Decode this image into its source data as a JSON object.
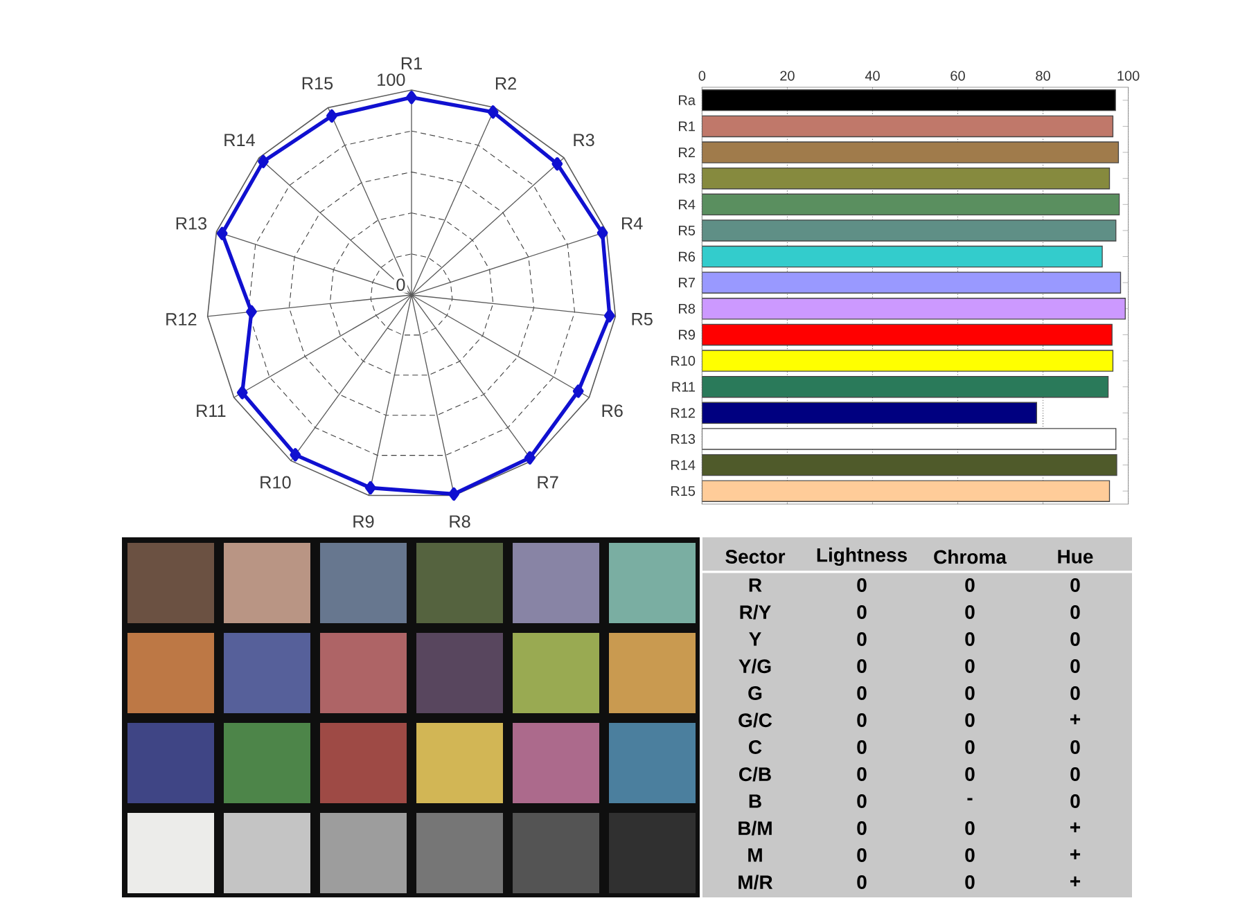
{
  "chart_data": [
    {
      "type": "radar",
      "categories": [
        "R1",
        "R2",
        "R3",
        "R4",
        "R5",
        "R6",
        "R7",
        "R8",
        "R9",
        "R10",
        "R11",
        "R12",
        "R13",
        "R14",
        "R15"
      ],
      "series": [
        {
          "color": "#1010d0",
          "values": [
            96.4,
            97.7,
            95.6,
            97.9,
            97.1,
            93.9,
            98.2,
            99.3,
            96.2,
            96.4,
            95.3,
            78.5,
            97.1,
            97.3,
            95.6
          ]
        }
      ],
      "ylim": [
        0,
        100
      ],
      "yticks": [
        0,
        100
      ],
      "marker": "diamond",
      "grid": true
    },
    {
      "type": "bar",
      "orientation": "horizontal",
      "categories": [
        "Ra",
        "R1",
        "R2",
        "R3",
        "R4",
        "R5",
        "R6",
        "R7",
        "R8",
        "R9",
        "R10",
        "R11",
        "R12",
        "R13",
        "R14",
        "R15"
      ],
      "values": [
        97.0,
        96.4,
        97.7,
        95.6,
        97.9,
        97.1,
        93.9,
        98.2,
        99.3,
        96.2,
        96.4,
        95.3,
        78.5,
        97.1,
        97.3,
        95.6
      ],
      "colors": [
        "#000000",
        "#c0786a",
        "#a07b4b",
        "#868a3e",
        "#5a8f5f",
        "#5f8f86",
        "#33cccc",
        "#9999ff",
        "#cc99ff",
        "#ff0000",
        "#ffff00",
        "#2a7a5a",
        "#000080",
        "#ffffff",
        "#4f5a2a",
        "#ffcc99"
      ],
      "xlim": [
        0,
        100
      ],
      "xticks": [
        0,
        20,
        40,
        60,
        80,
        100
      ],
      "grid": "x"
    },
    {
      "type": "other",
      "categories": [
        "Sector",
        "Lightness",
        "Chroma",
        "Hue"
      ],
      "cell_labels": [
        [
          "R",
          "0",
          "0",
          "0"
        ],
        [
          "R/Y",
          "0",
          "0",
          "0"
        ],
        [
          "Y",
          "0",
          "0",
          "0"
        ],
        [
          "Y/G",
          "0",
          "0",
          "0"
        ],
        [
          "G",
          "0",
          "0",
          "0"
        ],
        [
          "G/C",
          "0",
          "0",
          "+"
        ],
        [
          "C",
          "0",
          "0",
          "0"
        ],
        [
          "C/B",
          "0",
          "0",
          "0"
        ],
        [
          "B",
          "0",
          "-",
          "0"
        ],
        [
          "B/M",
          "0",
          "0",
          "+"
        ],
        [
          "M",
          "0",
          "0",
          "+"
        ],
        [
          "M/R",
          "0",
          "0",
          "+"
        ]
      ]
    }
  ]
}
